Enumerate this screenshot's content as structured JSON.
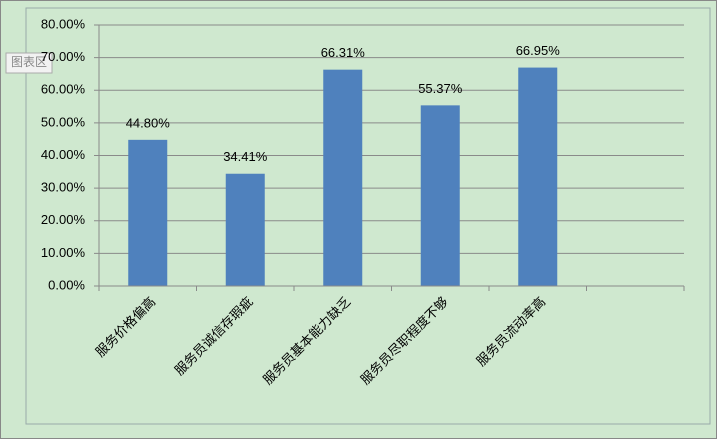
{
  "chart_data": {
    "type": "bar",
    "annotation": "图表区",
    "categories": [
      "服务价格偏高",
      "服务员诚信存瑕疵",
      "服务员基本能力缺乏",
      "服务员尽职程度不够",
      "服务员流动率高",
      null
    ],
    "values": [
      44.8,
      34.41,
      66.31,
      55.37,
      66.95,
      null
    ],
    "value_labels": [
      "44.80%",
      "34.41%",
      "66.31%",
      "55.37%",
      "66.95%",
      null
    ],
    "color": "#4f81bd",
    "ylim": [
      0,
      80
    ],
    "yticks": [
      {
        "value": 0,
        "label": "0.00%"
      },
      {
        "value": 10,
        "label": "10.00%"
      },
      {
        "value": 20,
        "label": "20.00%"
      },
      {
        "value": 30,
        "label": "30.00%"
      },
      {
        "value": 40,
        "label": "40.00%"
      },
      {
        "value": 50,
        "label": "50.00%"
      },
      {
        "value": 60,
        "label": "60.00%"
      },
      {
        "value": 70,
        "label": "70.00%"
      },
      {
        "value": 80,
        "label": "80.00%"
      }
    ],
    "grid": true
  }
}
